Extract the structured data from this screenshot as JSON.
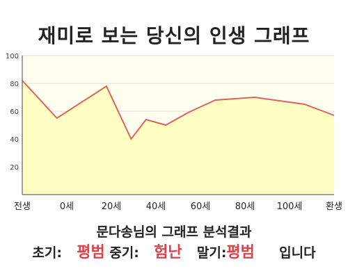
{
  "title": "재미로 보는 당신의 인생 그래프",
  "chart_data": {
    "type": "area",
    "categories": [
      "전생",
      "0세",
      "20세",
      "40세",
      "60세",
      "80세",
      "100세",
      "환생"
    ],
    "x": [
      -14,
      0,
      20,
      30,
      36,
      44,
      53,
      64,
      80,
      100,
      112
    ],
    "values": [
      82,
      55,
      78,
      40,
      54,
      50,
      59,
      68,
      70,
      65,
      57
    ],
    "ylim": [
      0,
      100
    ],
    "yticks": [
      20,
      40,
      60,
      80,
      100
    ],
    "grid": true,
    "colors": {
      "line": "#e06060",
      "fill": "#ffffc4",
      "plot_bg": "#fffff0",
      "grid": "#dddddd"
    }
  },
  "result": {
    "heading": "문다송님의 그래프 분석결과",
    "early_label": "초기:",
    "early_value": "평범",
    "middle_label": "중기:",
    "middle_value": "험난",
    "late_label": "말기:",
    "late_value": "평범",
    "suffix": "입니다"
  }
}
